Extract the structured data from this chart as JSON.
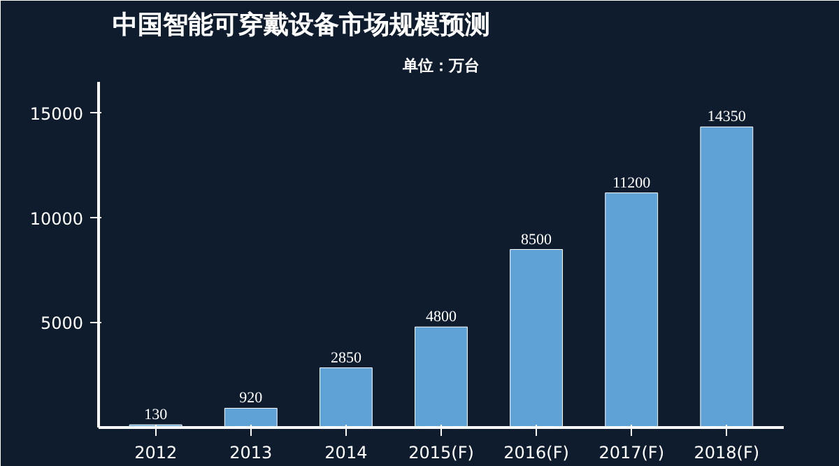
{
  "chart_data": {
    "type": "bar",
    "title": "中国智能可穿戴设备市场规模预测",
    "subtitle": "单位：万台",
    "categories": [
      "2012",
      "2013",
      "2014",
      "2015(F)",
      "2016(F)",
      "2017(F)",
      "2018(F)"
    ],
    "values": [
      130,
      920,
      2850,
      4800,
      8500,
      11200,
      14350
    ],
    "color": "#5fa3d6",
    "ylim": [
      0,
      16500
    ],
    "yticks": [
      5000,
      10000,
      15000
    ],
    "grid": false,
    "data_labels": true
  }
}
